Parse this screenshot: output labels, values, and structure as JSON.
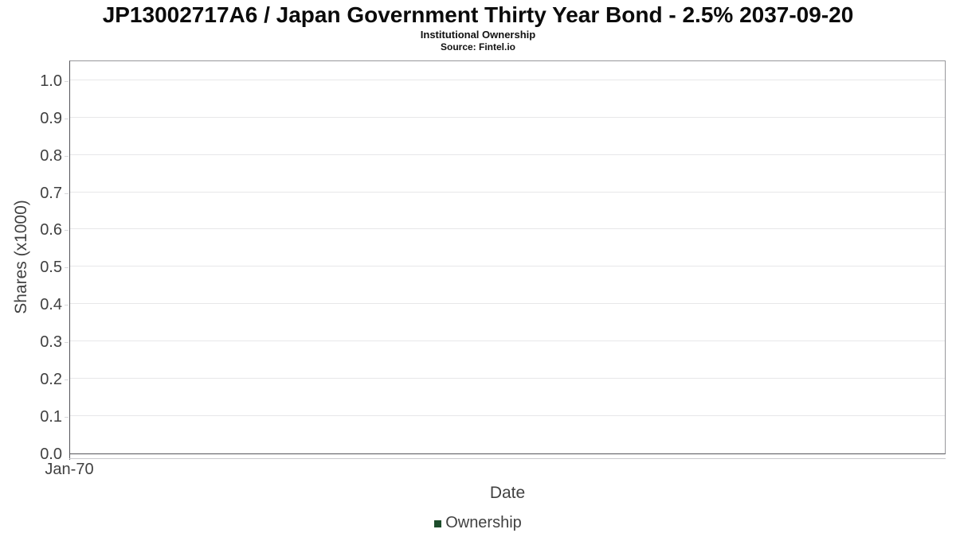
{
  "header": {
    "title": "JP13002717A6 / Japan Government Thirty Year Bond - 2.5% 2037-09-20",
    "subtitle": "Institutional Ownership",
    "source": "Source: Fintel.io"
  },
  "chart_data": {
    "type": "line",
    "title": "JP13002717A6 / Japan Government Thirty Year Bond - 2.5% 2037-09-20",
    "subtitle": "Institutional Ownership",
    "source": "Source: Fintel.io",
    "xlabel": "Date",
    "ylabel": "Shares (x1000)",
    "x_tick_labels": [
      "Jan-70"
    ],
    "y_tick_labels": [
      "0.0",
      "0.1",
      "0.2",
      "0.3",
      "0.4",
      "0.5",
      "0.6",
      "0.7",
      "0.8",
      "0.9",
      "1.0"
    ],
    "ylim": [
      0,
      1.055
    ],
    "grid": "horizontal",
    "legend": {
      "position": "bottom",
      "entries": [
        {
          "label": "Ownership",
          "color": "#1d4d2b"
        }
      ]
    },
    "series": [
      {
        "name": "Ownership",
        "color": "#1d4d2b",
        "x": [],
        "values": []
      }
    ]
  }
}
